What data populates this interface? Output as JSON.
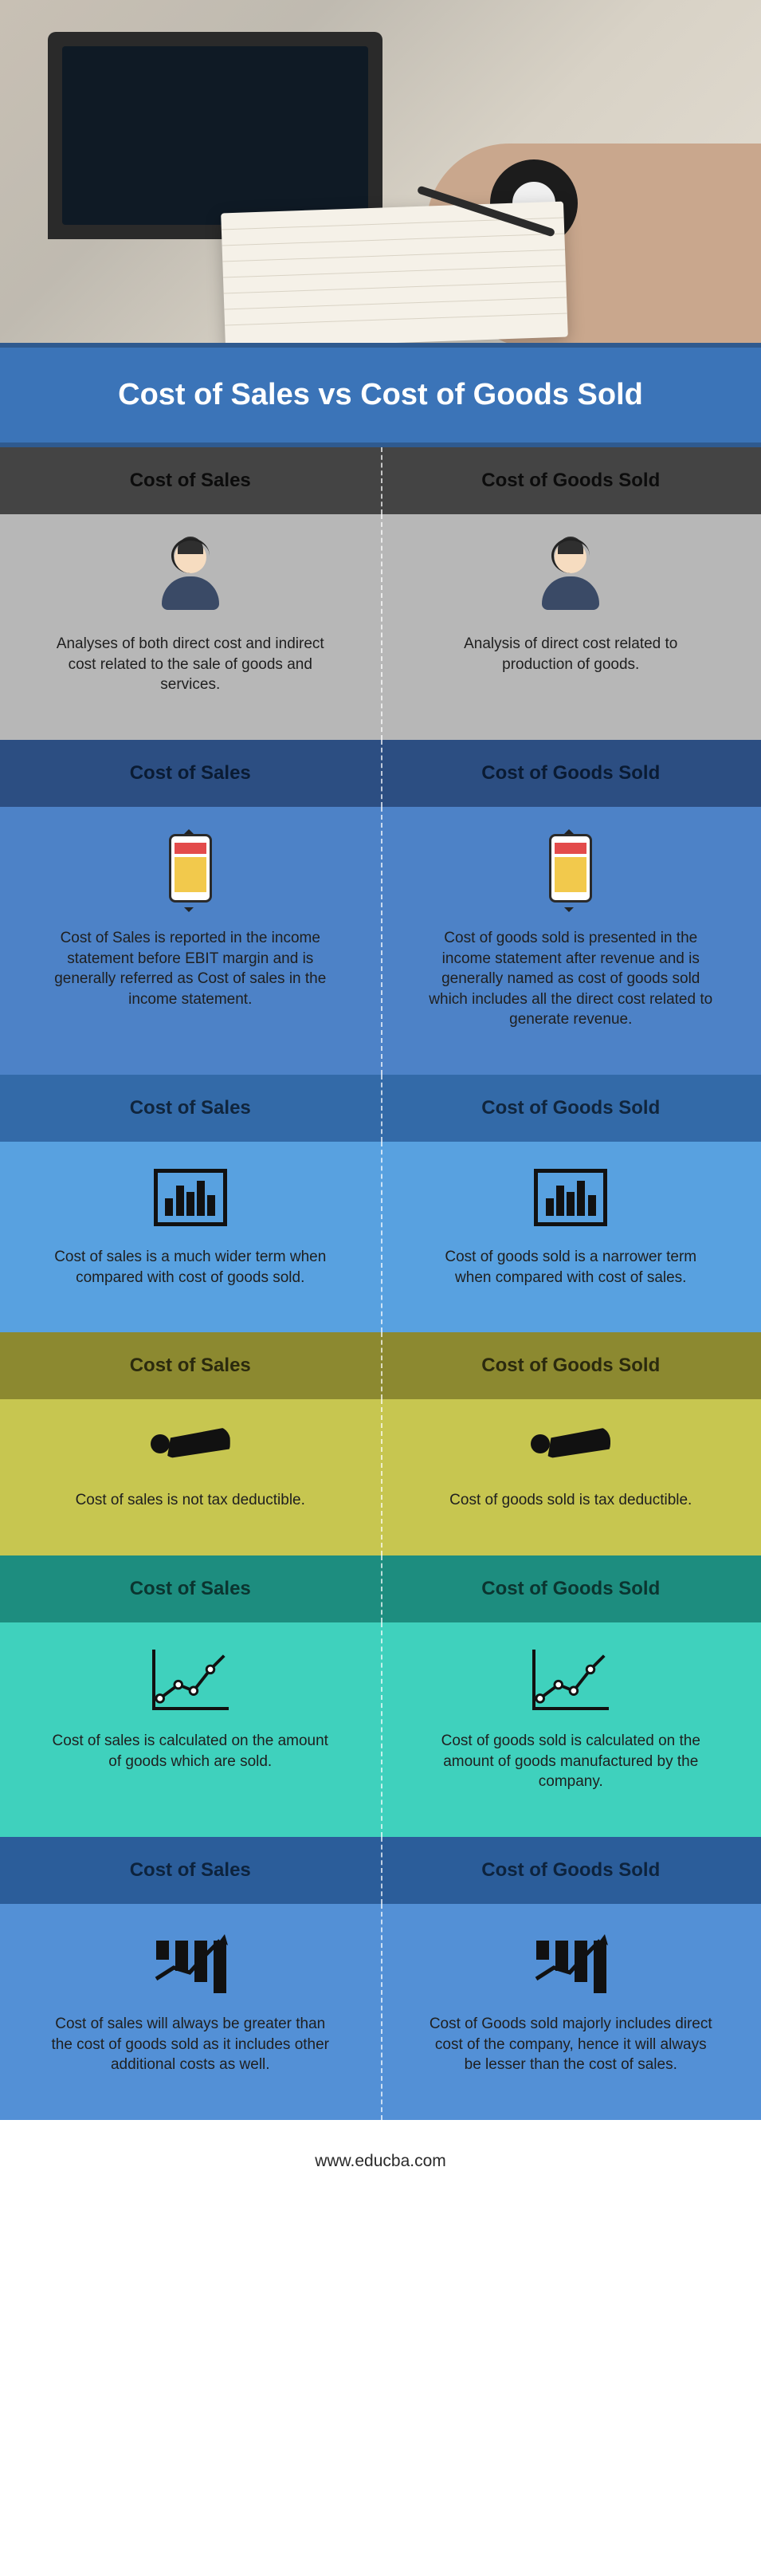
{
  "title": "Cost of Sales vs Cost of Goods Sold",
  "left_label": "Cost of Sales",
  "right_label": "Cost of Goods Sold",
  "footer": "www.educba.com",
  "sections": [
    {
      "head_bg": "#444444",
      "head_color": "#0c0c0c",
      "body_bg": "#b7b7b7",
      "dash_color": "rgba(255,255,255,0.85)",
      "left": "Analyses of both direct cost and indirect cost related to the sale of goods and services.",
      "right": "Analysis of direct cost related to production of goods."
    },
    {
      "head_bg": "#2c4e82",
      "head_color": "#0a1b33",
      "body_bg": "#4d82c7",
      "dash_color": "rgba(255,255,255,0.85)",
      "left": "Cost of Sales is reported in the income statement before EBIT margin and is generally referred as Cost of sales in the income statement.",
      "right": "Cost of goods sold is presented in the income statement after revenue and is generally named as cost of goods sold which includes all the direct cost related to generate revenue."
    },
    {
      "head_bg": "#336aa8",
      "head_color": "#10253d",
      "body_bg": "#58a1e0",
      "dash_color": "rgba(255,255,255,0.85)",
      "left": "Cost of sales is a much wider term when compared with cost of goods sold.",
      "right": "Cost of goods sold is a narrower term when compared with cost of sales."
    },
    {
      "head_bg": "#8c8930",
      "head_color": "#2b2a0e",
      "body_bg": "#c7c650",
      "dash_color": "rgba(255,255,255,0.85)",
      "left": "Cost of sales is not tax deductible.",
      "right": "Cost of goods sold is tax deductible."
    },
    {
      "head_bg": "#1d8d7f",
      "head_color": "#0b3530",
      "body_bg": "#3fd1bd",
      "dash_color": "rgba(255,255,255,0.85)",
      "left": "Cost of sales is calculated on the amount of goods which are sold.",
      "right": "Cost of goods sold is calculated on the amount of goods manufactured by the company."
    },
    {
      "head_bg": "#2b5d9a",
      "head_color": "#0d233d",
      "body_bg": "#5390d6",
      "dash_color": "rgba(255,255,255,0.85)",
      "left": "Cost of sales will always be greater than the cost of goods sold as it includes other additional costs as well.",
      "right": "Cost of Goods sold majorly includes direct cost of the company, hence it will always be lesser than the cost of sales."
    }
  ]
}
